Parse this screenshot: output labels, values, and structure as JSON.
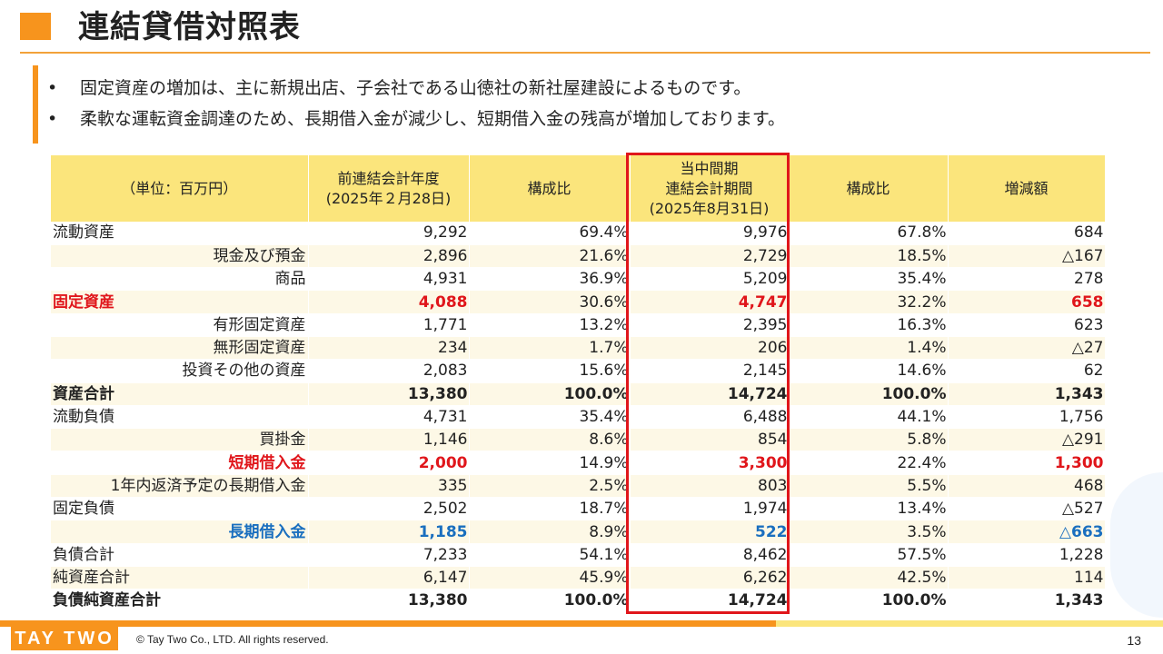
{
  "header": {
    "title": "連結貸借対照表"
  },
  "bullets": [
    "固定資産の増加は、主に新規出店、子会社である山徳社の新社屋建設によるものです。",
    "柔軟な運転資金調達のため、長期借入金が減少し、短期借入金の残高が増加しております。"
  ],
  "bullet_marker": "•",
  "table": {
    "headers": {
      "unit": "（単位：百万円）",
      "prev_line1": "前連結会計年度",
      "prev_line2": "(2025年２月28日)",
      "ratio1": "構成比",
      "cur_line1": "当中間期",
      "cur_line2": "連結会計期間",
      "cur_line3": "(2025年8月31日)",
      "ratio2": "構成比",
      "change": "増減額"
    },
    "rows": [
      {
        "label": "流動資産",
        "prev": "9,292",
        "prev_ratio": "69.4%",
        "cur": "9,976",
        "cur_ratio": "67.8%",
        "change": "684"
      },
      {
        "label": "現金及び預金",
        "prev": "2,896",
        "prev_ratio": "21.6%",
        "cur": "2,729",
        "cur_ratio": "18.5%",
        "change": "△167"
      },
      {
        "label": "商品",
        "prev": "4,931",
        "prev_ratio": "36.9%",
        "cur": "5,209",
        "cur_ratio": "35.4%",
        "change": "278"
      },
      {
        "label": "固定資産",
        "prev": "4,088",
        "prev_ratio": "30.6%",
        "cur": "4,747",
        "cur_ratio": "32.2%",
        "change": "658"
      },
      {
        "label": "有形固定資産",
        "prev": "1,771",
        "prev_ratio": "13.2%",
        "cur": "2,395",
        "cur_ratio": "16.3%",
        "change": "623"
      },
      {
        "label": "無形固定資産",
        "prev": "234",
        "prev_ratio": "1.7%",
        "cur": "206",
        "cur_ratio": "1.4%",
        "change": "△27"
      },
      {
        "label": "投資その他の資産",
        "prev": "2,083",
        "prev_ratio": "15.6%",
        "cur": "2,145",
        "cur_ratio": "14.6%",
        "change": "62"
      },
      {
        "label": "資産合計",
        "prev": "13,380",
        "prev_ratio": "100.0%",
        "cur": "14,724",
        "cur_ratio": "100.0%",
        "change": "1,343"
      },
      {
        "label": "流動負債",
        "prev": "4,731",
        "prev_ratio": "35.4%",
        "cur": "6,488",
        "cur_ratio": "44.1%",
        "change": "1,756"
      },
      {
        "label": "買掛金",
        "prev": "1,146",
        "prev_ratio": "8.6%",
        "cur": "854",
        "cur_ratio": "5.8%",
        "change": "△291"
      },
      {
        "label": "短期借入金",
        "prev": "2,000",
        "prev_ratio": "14.9%",
        "cur": "3,300",
        "cur_ratio": "22.4%",
        "change": "1,300"
      },
      {
        "label": "1年内返済予定の長期借入金",
        "prev": "335",
        "prev_ratio": "2.5%",
        "cur": "803",
        "cur_ratio": "5.5%",
        "change": "468"
      },
      {
        "label": "固定負債",
        "prev": "2,502",
        "prev_ratio": "18.7%",
        "cur": "1,974",
        "cur_ratio": "13.4%",
        "change": "△527"
      },
      {
        "label": "長期借入金",
        "prev": "1,185",
        "prev_ratio": "8.9%",
        "cur": "522",
        "cur_ratio": "3.5%",
        "change": "△663"
      },
      {
        "label": "負債合計",
        "prev": "7,233",
        "prev_ratio": "54.1%",
        "cur": "8,462",
        "cur_ratio": "57.5%",
        "change": "1,228"
      },
      {
        "label": "純資産合計",
        "prev": "6,147",
        "prev_ratio": "45.9%",
        "cur": "6,262",
        "cur_ratio": "42.5%",
        "change": "114"
      },
      {
        "label": "負債純資産合計",
        "prev": "13,380",
        "prev_ratio": "100.0%",
        "cur": "14,724",
        "cur_ratio": "100.0%",
        "change": "1,343"
      }
    ]
  },
  "footer": {
    "logo_text": "TAY TWO",
    "copyright": "© Tay Two Co., LTD. All rights reserved.",
    "page_number": "13"
  },
  "colors": {
    "accent": "#f7941d",
    "header_fill": "#fbe57c",
    "highlight": "#e0161b",
    "blue": "#1a6fbf"
  }
}
